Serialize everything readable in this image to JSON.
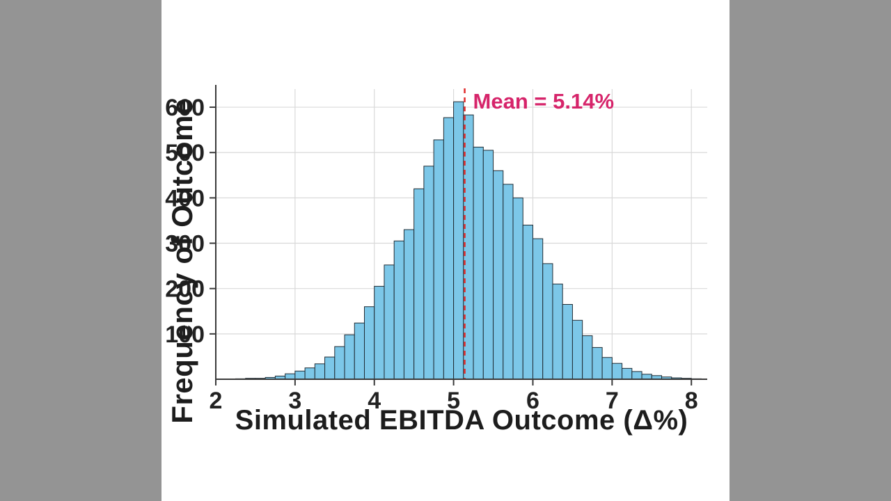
{
  "page": {
    "background_color": "#949494",
    "panel_color": "#ffffff"
  },
  "chart_data": {
    "type": "bar",
    "subtype": "histogram",
    "title": "",
    "xlabel": "Simulated EBITDA Outcome (Δ%)",
    "ylabel": "Frequency of Outcome",
    "xlim": [
      2,
      8.2
    ],
    "ylim": [
      0,
      640
    ],
    "xticks": [
      2,
      3,
      4,
      5,
      6,
      7,
      8
    ],
    "yticks": [
      100,
      200,
      300,
      400,
      500,
      600
    ],
    "grid": true,
    "legend": "none",
    "bin_start": 2.25,
    "bin_width": 0.125,
    "frequencies": [
      1,
      2,
      2,
      4,
      7,
      12,
      18,
      25,
      34,
      49,
      72,
      98,
      124,
      160,
      205,
      252,
      305,
      330,
      420,
      470,
      528,
      577,
      612,
      583,
      512,
      505,
      460,
      430,
      400,
      340,
      310,
      255,
      210,
      165,
      130,
      96,
      70,
      48,
      35,
      24,
      17,
      11,
      8,
      5,
      3,
      2,
      1
    ],
    "mean": 5.14,
    "mean_label": "Mean = 5.14%",
    "bar_fill": "#7CC7E8",
    "bar_edge": "#1f2b33",
    "mean_line_color": "#E12C2C",
    "mean_label_color": "#D6246A",
    "grid_color": "#d9d9d9",
    "axis_color": "#3a3a3a",
    "text_color": "#222222"
  }
}
